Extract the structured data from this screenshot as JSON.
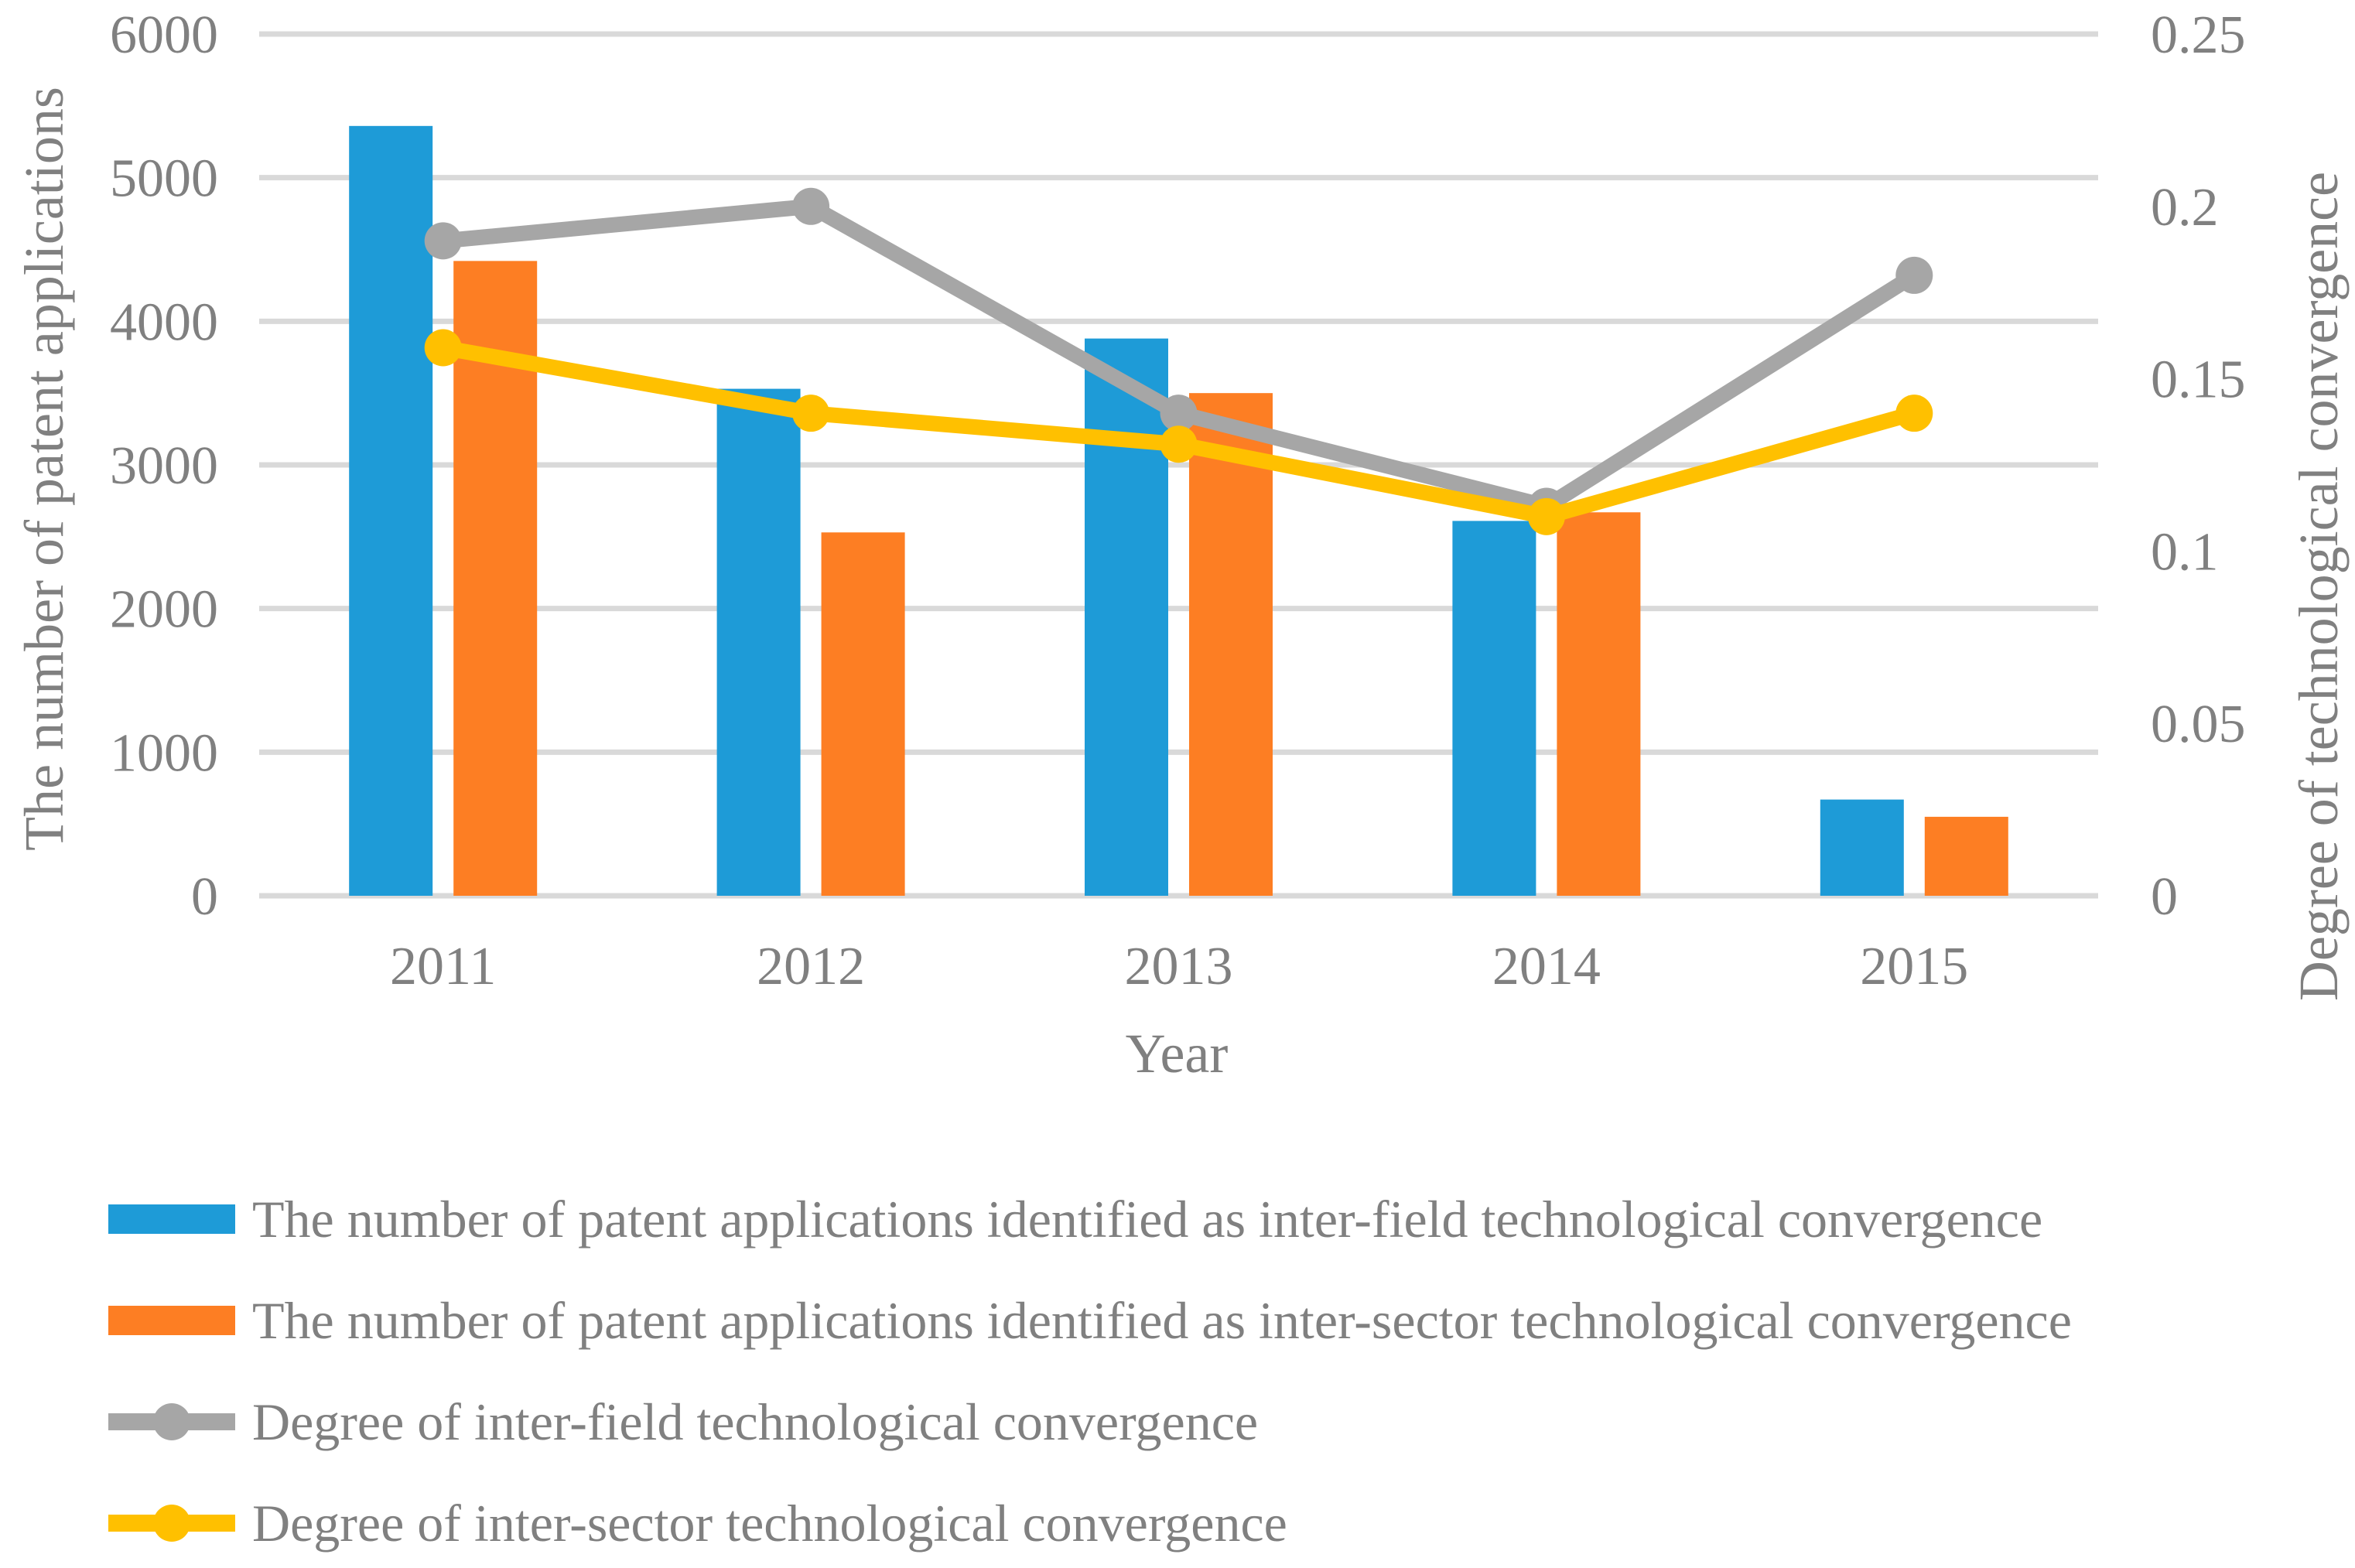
{
  "figure": {
    "background": "#FFFFFF",
    "text_color": "#808080",
    "gridline_color": "#D9D9D9"
  },
  "chart_data": {
    "type": "bar+line combo (dual axis)",
    "categories": [
      "2011",
      "2012",
      "2013",
      "2014",
      "2015"
    ],
    "bar_series": [
      {
        "key": "inter-field-count",
        "name": "The number of patent applications identified as inter-field technological convergence",
        "color": "#1E9BD7",
        "axis": "left",
        "values": [
          5360,
          3530,
          3880,
          2610,
          670
        ]
      },
      {
        "key": "inter-sector-count",
        "name": "The number of patent applications identified as inter-sector technological convergence",
        "color": "#FD7E23",
        "axis": "left",
        "values": [
          4420,
          2530,
          3500,
          2670,
          550
        ]
      }
    ],
    "line_series": [
      {
        "key": "inter-field-degree",
        "name": "Degree of inter-field technological convergence",
        "color": "#A6A6A6",
        "axis": "right",
        "values": [
          0.19,
          0.2,
          0.14,
          0.113,
          0.18
        ]
      },
      {
        "key": "inter-sector-degree",
        "name": "Degree of inter-sector technological convergence",
        "color": "#FFC000",
        "axis": "right",
        "values": [
          0.159,
          0.14,
          0.131,
          0.11,
          0.14
        ]
      }
    ],
    "left_axis": {
      "title": "The number of patent applications",
      "min": 0,
      "max": 6000,
      "tick_step": 1000,
      "ticks": [
        "0",
        "1000",
        "2000",
        "3000",
        "4000",
        "5000",
        "6000"
      ]
    },
    "right_axis": {
      "title": "Degree of technological convergence",
      "min": 0,
      "max": 0.25,
      "tick_step": 0.05,
      "ticks": [
        "0",
        "0.05",
        "0.1",
        "0.15",
        "0.2",
        "0.25"
      ]
    },
    "x_title": "Year",
    "grid": true,
    "legend_position": "bottom-left"
  },
  "legend": {
    "items": [
      {
        "label": "The number of patent applications identified as inter-field technological convergence",
        "swatch": "square",
        "color": "#1E9BD7"
      },
      {
        "label": "The number of patent applications identified as inter-sector technological convergence",
        "swatch": "square",
        "color": "#FD7E23"
      },
      {
        "label": "Degree of inter-field technological convergence",
        "swatch": "line-marker",
        "color": "#A6A6A6"
      },
      {
        "label": "Degree of inter-sector technological convergence",
        "swatch": "line-marker",
        "color": "#FFC000"
      }
    ]
  }
}
